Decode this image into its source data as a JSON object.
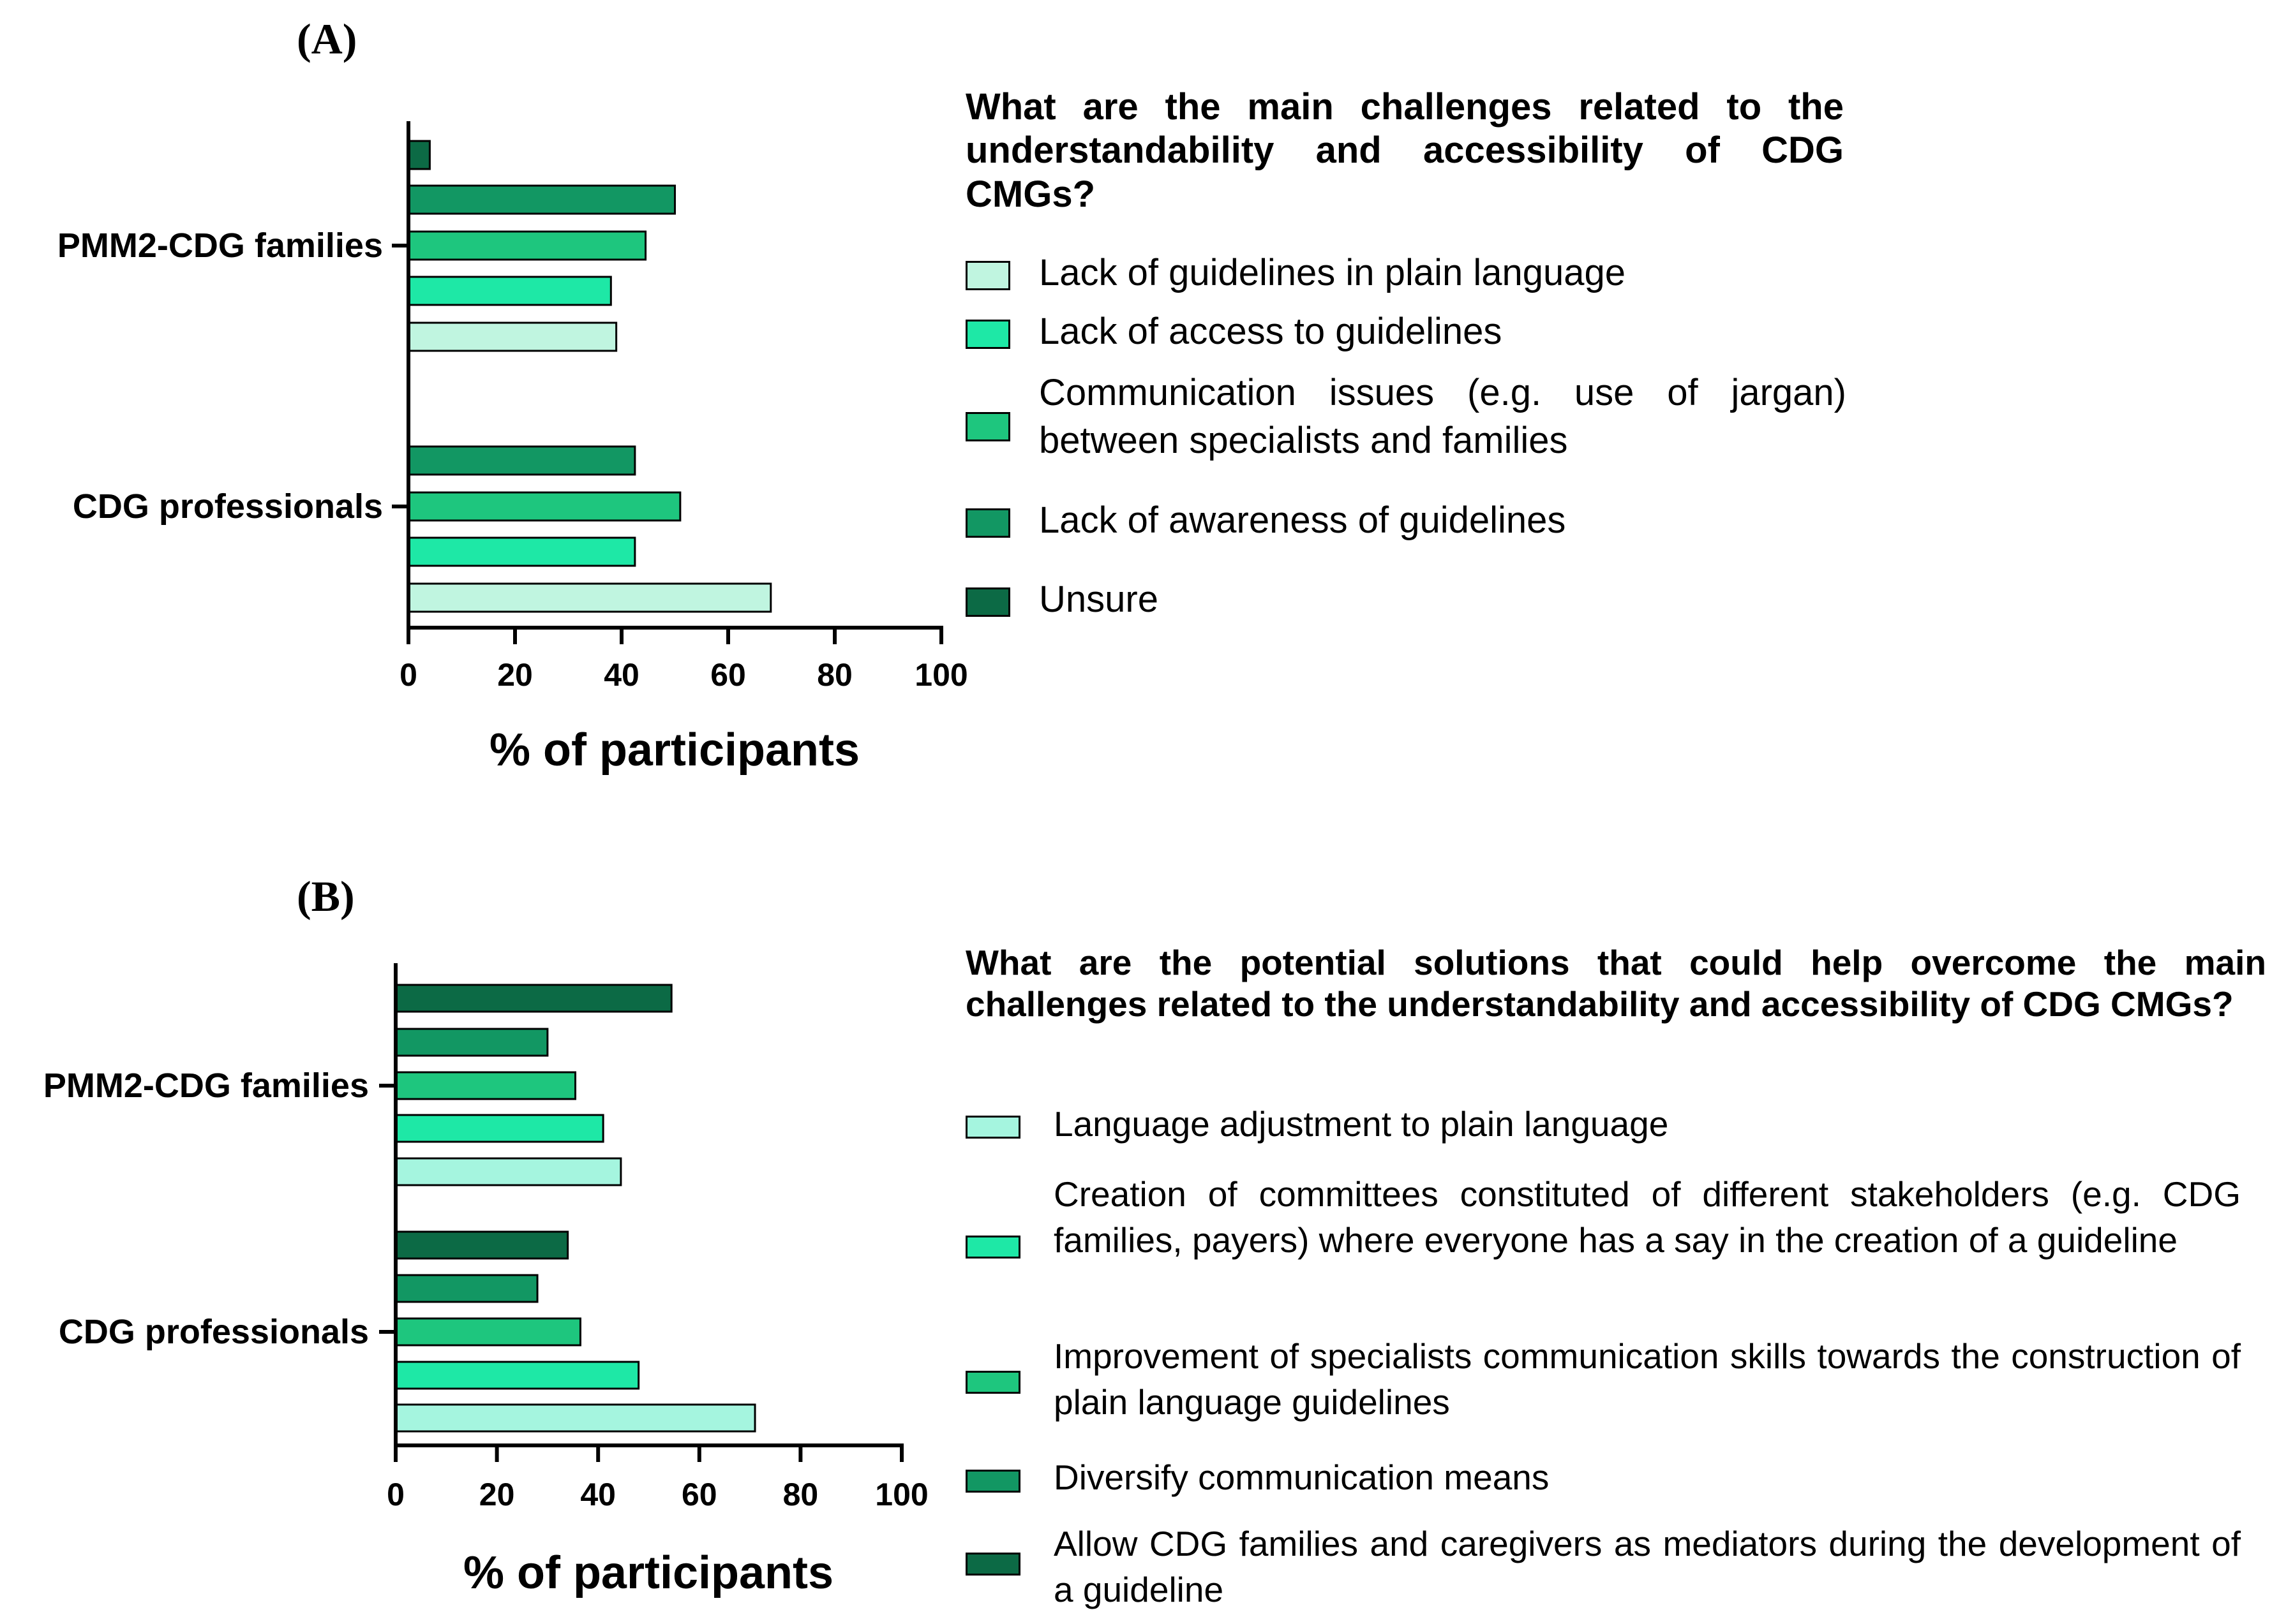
{
  "panels": [
    {
      "id": "A",
      "letter": "(A)",
      "question": "What are the main challenges related to the understandability and accessibility of CDG CMGs?",
      "legend": [
        {
          "label": "Lack of guidelines in plain language",
          "color": "#c0f5e0"
        },
        {
          "label": "Lack of access to guidelines",
          "color": "#1ee8a6"
        },
        {
          "label": "Communication issues (e.g. use of jargan) between specialists and families",
          "color": "#1ec67e"
        },
        {
          "label": "Lack of awareness of guidelines",
          "color": "#129763"
        },
        {
          "label": "Unsure",
          "color": "#0c6a45"
        }
      ]
    },
    {
      "id": "B",
      "letter": "(B)",
      "question": "What are the potential solutions that could help overcome the main challenges related to the understandability and accessibility of CDG CMGs?",
      "legend": [
        {
          "label": "Language adjustment to plain language",
          "color": "#a5f5df"
        },
        {
          "label": "Creation of committees constituted of different stakeholders (e.g. CDG families, payers) where everyone has a say in the creation of a guideline",
          "color": "#1ee8a6"
        },
        {
          "label": "Improvement of specialists communication skills towards the construction of plain language guidelines",
          "color": "#1ec67e"
        },
        {
          "label": "Diversify communication means",
          "color": "#129763"
        },
        {
          "label": "Allow CDG families and caregivers as mediators during the development of a guideline",
          "color": "#0c6a45"
        }
      ]
    }
  ],
  "chart_data": [
    {
      "type": "bar",
      "orientation": "horizontal",
      "title": "What are the main challenges related to the understandability and accessibility of CDG CMGs?",
      "xlabel": "% of participants",
      "ylabel": "",
      "xlim": [
        0,
        100
      ],
      "xticks": [
        0,
        20,
        40,
        60,
        80,
        100
      ],
      "categories": [
        "PMM2-CDG families",
        "CDG professionals"
      ],
      "series": [
        {
          "name": "Lack of guidelines in plain language",
          "values": [
            39,
            68
          ]
        },
        {
          "name": "Lack of access to guidelines",
          "values": [
            38,
            42.5
          ]
        },
        {
          "name": "Communication issues (e.g. use of jargan) between specialists and families",
          "values": [
            44.5,
            51
          ]
        },
        {
          "name": "Lack of awareness of guidelines",
          "values": [
            50,
            42.5
          ]
        },
        {
          "name": "Unsure",
          "values": [
            4,
            null
          ]
        }
      ],
      "legend_position": "right",
      "grid": false
    },
    {
      "type": "bar",
      "orientation": "horizontal",
      "title": "What are the potential solutions that could help overcome the main challenges related to the understandability and accessibility of CDG CMGs?",
      "xlabel": "% of participants",
      "ylabel": "",
      "xlim": [
        0,
        100
      ],
      "xticks": [
        0,
        20,
        40,
        60,
        80,
        100
      ],
      "categories": [
        "PMM2-CDG families",
        "CDG professionals"
      ],
      "series": [
        {
          "name": "Language adjustment to plain language",
          "values": [
            44.5,
            71
          ]
        },
        {
          "name": "Creation of committees constituted of different stakeholders (e.g. CDG families, payers) where everyone has a say in the creation of a guideline",
          "values": [
            41,
            48
          ]
        },
        {
          "name": "Improvement of specialists communication skills towards the construction of plain language guidelines",
          "values": [
            35.5,
            36.5
          ]
        },
        {
          "name": "Diversify communication means",
          "values": [
            30,
            28
          ]
        },
        {
          "name": "Allow CDG families and caregivers as mediators during the development of a guideline",
          "values": [
            54.5,
            34
          ]
        }
      ],
      "legend_position": "right",
      "grid": false
    }
  ]
}
